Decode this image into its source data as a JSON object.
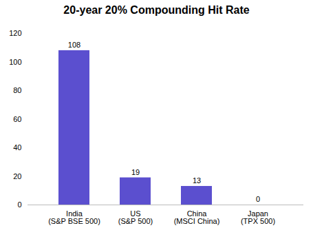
{
  "chart_data": {
    "type": "bar",
    "title": "20-year 20% Compounding Hit Rate",
    "categories": [
      "India\n(S&P BSE 500)",
      "US\n(S&P 500)",
      "China\n(MSCI China)",
      "Japan\n(TPX 500)"
    ],
    "values": [
      108,
      19,
      13,
      0
    ],
    "color": "#5B4FCF",
    "ylim": [
      0,
      120
    ],
    "yticks": [
      0,
      20,
      40,
      60,
      80,
      100,
      120
    ],
    "grid": false,
    "data_labels": true
  }
}
